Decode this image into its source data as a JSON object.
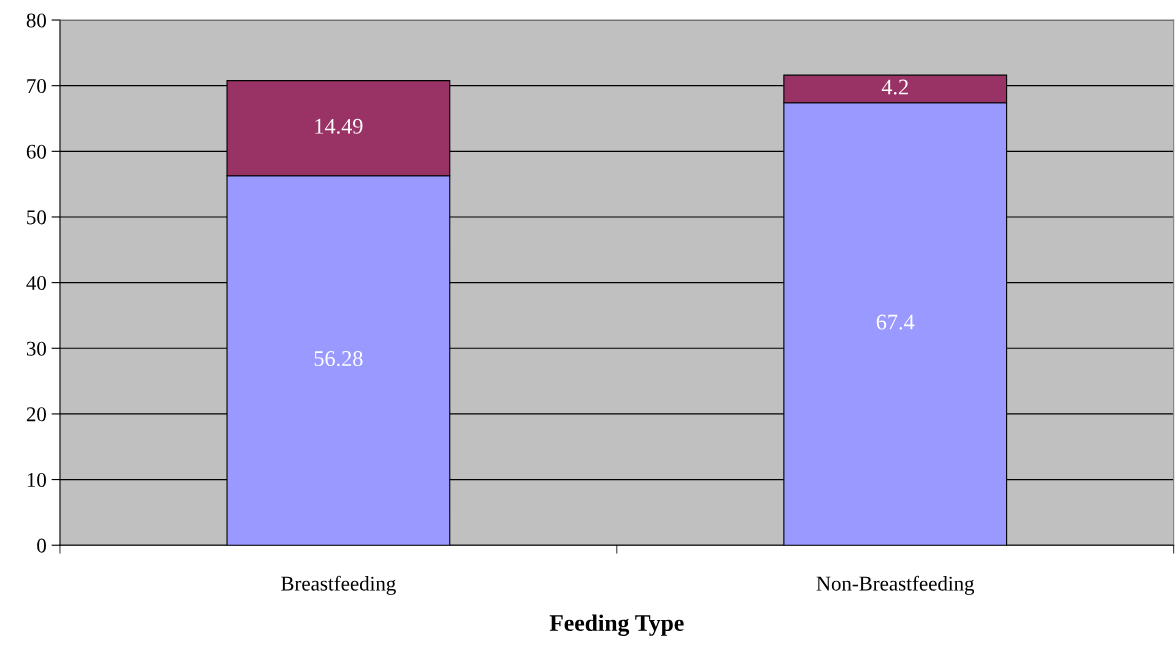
{
  "chart_data": {
    "type": "bar",
    "xlabel": "Feeding Type",
    "categories": [
      "Breastfeeding",
      "Non-Breastfeeding"
    ],
    "series": [
      {
        "color": "#9999ff",
        "values": [
          56.28,
          67.4
        ]
      },
      {
        "color": "#993366",
        "values": [
          14.49,
          4.2
        ]
      }
    ],
    "stacked": true,
    "data_labels": true,
    "ylim": [
      0,
      80
    ],
    "yticks": [
      0,
      10,
      20,
      30,
      40,
      50,
      60,
      70,
      80
    ],
    "grid": "y",
    "legend": false
  }
}
